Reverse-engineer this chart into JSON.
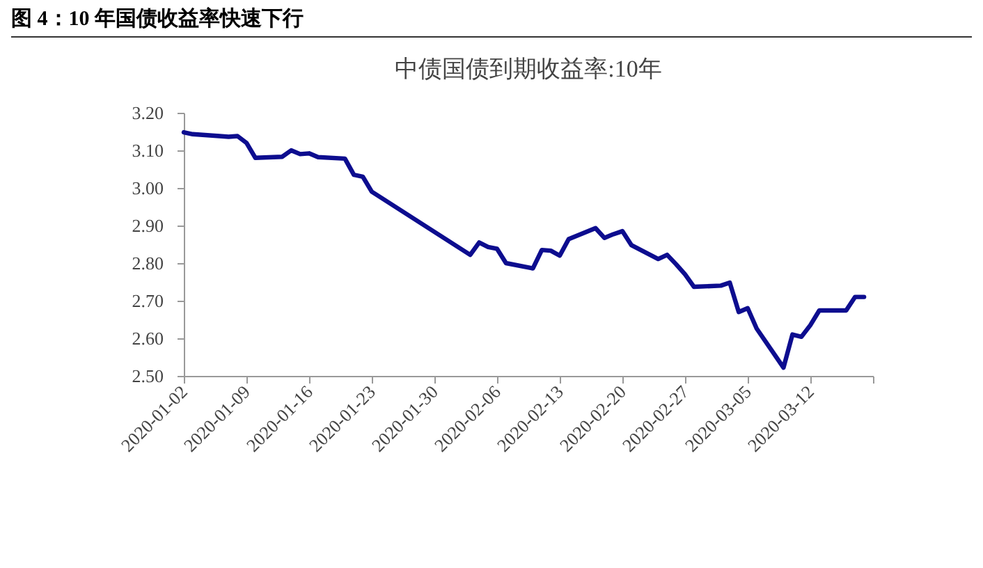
{
  "chart_data": {
    "type": "line",
    "title": "图 4：10 年国债收益率快速下行",
    "subtitle": "中债国债到期收益率:10年",
    "x": [
      "2020-01-02",
      "2020-01-03",
      "2020-01-06",
      "2020-01-07",
      "2020-01-08",
      "2020-01-09",
      "2020-01-10",
      "2020-01-13",
      "2020-01-14",
      "2020-01-15",
      "2020-01-16",
      "2020-01-17",
      "2020-01-20",
      "2020-01-21",
      "2020-01-22",
      "2020-01-23",
      "2020-02-03",
      "2020-02-04",
      "2020-02-05",
      "2020-02-06",
      "2020-02-07",
      "2020-02-10",
      "2020-02-11",
      "2020-02-12",
      "2020-02-13",
      "2020-02-14",
      "2020-02-17",
      "2020-02-18",
      "2020-02-19",
      "2020-02-20",
      "2020-02-21",
      "2020-02-24",
      "2020-02-25",
      "2020-02-26",
      "2020-02-27",
      "2020-02-28",
      "2020-03-02",
      "2020-03-03",
      "2020-03-04",
      "2020-03-05",
      "2020-03-06",
      "2020-03-09",
      "2020-03-10",
      "2020-03-11",
      "2020-03-12",
      "2020-03-13",
      "2020-03-16",
      "2020-03-17",
      "2020-03-18"
    ],
    "series": [
      {
        "color": "#0d0d8f",
        "values": [
          3.148,
          3.143,
          3.138,
          3.136,
          3.138,
          3.12,
          3.08,
          3.083,
          3.1,
          3.09,
          3.092,
          3.082,
          3.078,
          3.035,
          3.03,
          2.99,
          2.822,
          2.855,
          2.843,
          2.838,
          2.8,
          2.786,
          2.835,
          2.833,
          2.82,
          2.864,
          2.893,
          2.867,
          2.877,
          2.885,
          2.848,
          2.811,
          2.822,
          2.797,
          2.77,
          2.737,
          2.74,
          2.748,
          2.67,
          2.68,
          2.626,
          2.522,
          2.61,
          2.604,
          2.635,
          2.674,
          2.674,
          2.71,
          2.71
        ]
      }
    ],
    "xlim": [
      "2020-01-02",
      "2020-03-19"
    ],
    "xticks": [
      {
        "value": "2020-01-02",
        "label": "2020-01-02"
      },
      {
        "value": "2020-01-09",
        "label": "2020-01-09"
      },
      {
        "value": "2020-01-16",
        "label": "2020-01-16"
      },
      {
        "value": "2020-01-23",
        "label": "2020-01-23"
      },
      {
        "value": "2020-01-30",
        "label": "2020-01-30"
      },
      {
        "value": "2020-02-06",
        "label": "2020-02-06"
      },
      {
        "value": "2020-02-13",
        "label": "2020-02-13"
      },
      {
        "value": "2020-02-20",
        "label": "2020-02-20"
      },
      {
        "value": "2020-02-27",
        "label": "2020-02-27"
      },
      {
        "value": "2020-03-05",
        "label": "2020-03-05"
      },
      {
        "value": "2020-03-12",
        "label": "2020-03-12"
      },
      {
        "value": "2020-03-19",
        "label": null
      }
    ],
    "ylim": [
      2.5,
      3.2
    ],
    "yticks": [
      {
        "value": 2.5,
        "label": "2.50"
      },
      {
        "value": 2.6,
        "label": "2.60"
      },
      {
        "value": 2.7,
        "label": "2.70"
      },
      {
        "value": 2.8,
        "label": "2.80"
      },
      {
        "value": 2.9,
        "label": "2.90"
      },
      {
        "value": 3.0,
        "label": "3.00"
      },
      {
        "value": 3.1,
        "label": "3.10"
      },
      {
        "value": 3.2,
        "label": "3.20"
      }
    ],
    "grid": false,
    "legend": false,
    "marker": "none",
    "line_style": "solid"
  }
}
